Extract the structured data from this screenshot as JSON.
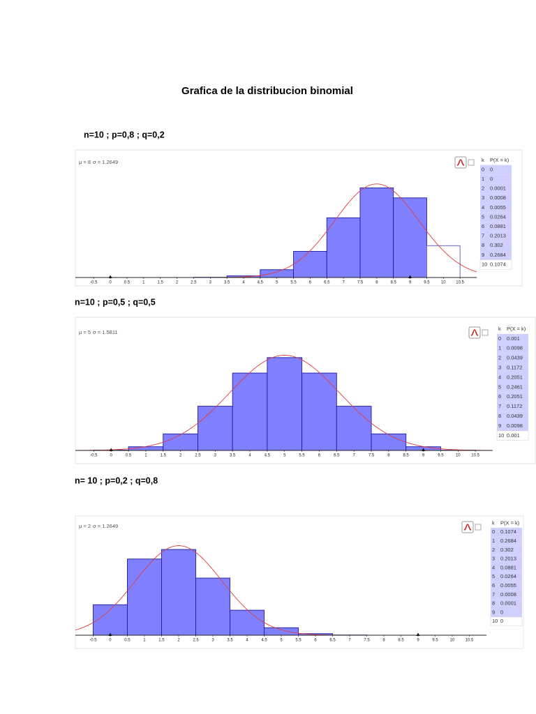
{
  "title": "Grafica de la distribucion binomial",
  "chart_data": [
    {
      "type": "histogram",
      "heading": "n=10 ; p=0,8 ; q=0,2",
      "mu": {
        "value": 8,
        "label": "μ = 8"
      },
      "sigma": {
        "value": 1.2649,
        "label": "σ = 1.2649"
      },
      "table_header": [
        "k",
        "P(X = k)"
      ],
      "categories": [
        0,
        1,
        2,
        3,
        4,
        5,
        6,
        7,
        8,
        9,
        10
      ],
      "bins": [
        -0.5,
        0.5,
        1.5,
        2.5,
        3.5,
        4.5,
        5.5,
        6.5,
        7.5,
        8.5,
        9.5,
        10.5
      ],
      "values": [
        0,
        0,
        0.0001,
        0.0008,
        0.0055,
        0.0264,
        0.0881,
        0.2013,
        0.302,
        0.2684,
        0.1074
      ],
      "highlight_range": [
        0,
        9
      ],
      "color": "#8080ff",
      "curve_color": "#e03c3c",
      "xlim": [
        -1.05,
        11
      ],
      "ylim": [
        0,
        0.43
      ],
      "xticks": [
        -0.5,
        0,
        0.5,
        1,
        1.5,
        2,
        2.5,
        3,
        3.5,
        4,
        4.5,
        5,
        5.5,
        6,
        6.5,
        7,
        7.5,
        8,
        8.5,
        9,
        9.5,
        10,
        10.5
      ]
    },
    {
      "type": "histogram",
      "heading": "n=10 ; p=0,5 ; q=0,5",
      "mu": {
        "value": 5,
        "label": "μ = 5"
      },
      "sigma": {
        "value": 1.5811,
        "label": "σ = 1.5811"
      },
      "table_header": [
        "k",
        "P(X = k)"
      ],
      "categories": [
        0,
        1,
        2,
        3,
        4,
        5,
        6,
        7,
        8,
        9,
        10
      ],
      "bins": [
        -0.5,
        0.5,
        1.5,
        2.5,
        3.5,
        4.5,
        5.5,
        6.5,
        7.5,
        8.5,
        9.5,
        10.5
      ],
      "values": [
        0.001,
        0.0098,
        0.0439,
        0.1172,
        0.2051,
        0.2461,
        0.2051,
        0.1172,
        0.0439,
        0.0098,
        0.001
      ],
      "highlight_range": [
        0,
        9
      ],
      "color": "#8080ff",
      "curve_color": "#e03c3c",
      "xlim": [
        -1.03,
        11
      ],
      "ylim": [
        0,
        0.353
      ],
      "xticks": [
        -0.5,
        0,
        0.5,
        1,
        1.5,
        2,
        2.5,
        3,
        3.5,
        4,
        4.5,
        5,
        5.5,
        6,
        6.5,
        7,
        7.5,
        8,
        8.5,
        9,
        9.5,
        10,
        10.5
      ]
    },
    {
      "type": "histogram",
      "heading": "n= 10 ; p=0,2 ; q=0,8",
      "mu": {
        "value": 2,
        "label": "μ = 2"
      },
      "sigma": {
        "value": 1.2649,
        "label": "σ = 1.2649"
      },
      "table_header": [
        "k",
        "P(X = k)"
      ],
      "categories": [
        0,
        1,
        2,
        3,
        4,
        5,
        6,
        7,
        8,
        9,
        10
      ],
      "bins": [
        -0.5,
        0.5,
        1.5,
        2.5,
        3.5,
        4.5,
        5.5,
        6.5,
        7.5,
        8.5,
        9.5,
        10.5
      ],
      "values": [
        0.1074,
        0.2684,
        0.302,
        0.2013,
        0.0881,
        0.0264,
        0.0055,
        0.0008,
        0.0001,
        0,
        0
      ],
      "highlight_range": [
        0,
        9
      ],
      "color": "#8080ff",
      "curve_color": "#e03c3c",
      "xlim": [
        -1.02,
        11
      ],
      "ylim": [
        0,
        0.42
      ],
      "xticks": [
        -0.5,
        0,
        0.5,
        1,
        1.5,
        2,
        2.5,
        3,
        3.5,
        4,
        4.5,
        5,
        5.5,
        6,
        6.5,
        7,
        7.5,
        8,
        8.5,
        9,
        9.5,
        10,
        10.5
      ]
    }
  ]
}
